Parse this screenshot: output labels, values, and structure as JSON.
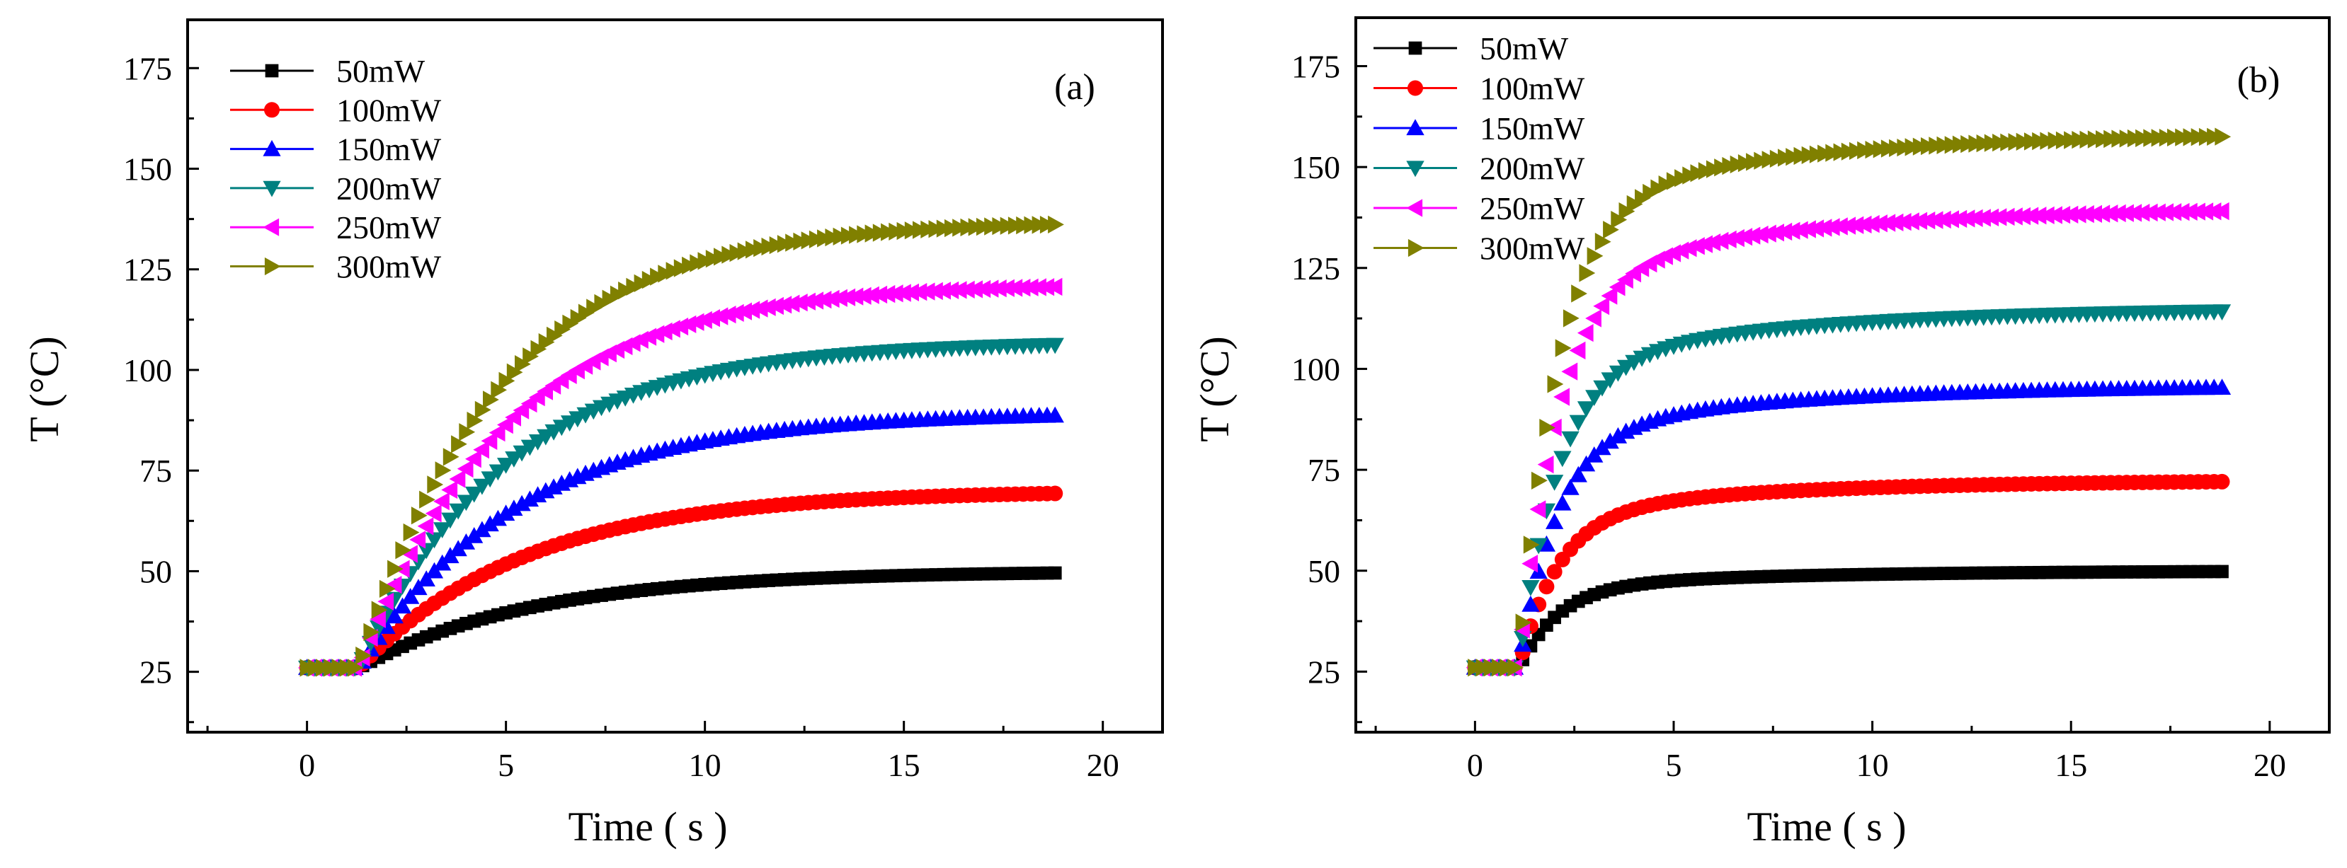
{
  "chart_data": [
    {
      "type": "scatter",
      "panel_label": "(a)",
      "xlabel": "Time ( s )",
      "ylabel": "T (°C)",
      "xlim": [
        -3,
        21.5
      ],
      "ylim": [
        10,
        187
      ],
      "xticks": [
        0,
        5,
        10,
        15,
        20
      ],
      "yticks": [
        25,
        50,
        75,
        100,
        125,
        150,
        175
      ],
      "xtick_labels": [
        "0",
        "5",
        "10",
        "15",
        "20"
      ],
      "ytick_labels": [
        "25",
        "50",
        "75",
        "100",
        "125",
        "150",
        "175"
      ],
      "legend_position": "top-left",
      "model": {
        "t_start": 0,
        "t_rise": 1.3,
        "t_end": 18.8,
        "dt": 0.2,
        "base_temperature": 26
      },
      "series": [
        {
          "name": "50mW",
          "color": "#000000",
          "marker": "square",
          "final_temperature": 50,
          "time_constant": 4.4
        },
        {
          "name": "100mW",
          "color": "#ff0000",
          "marker": "circle",
          "final_temperature": 70,
          "time_constant": 4.2
        },
        {
          "name": "150mW",
          "color": "#0000ff",
          "marker": "triangle-up",
          "final_temperature": 89.5,
          "time_constant": 4.0
        },
        {
          "name": "200mW",
          "color": "#008080",
          "marker": "triangle-down",
          "final_temperature": 107,
          "time_constant": 3.8
        },
        {
          "name": "250mW",
          "color": "#ff00ff",
          "marker": "triangle-left",
          "final_temperature": 121.5,
          "time_constant": 3.7
        },
        {
          "name": "300mW",
          "color": "#808000",
          "marker": "triangle-right",
          "final_temperature": 137,
          "time_constant": 3.6
        }
      ]
    },
    {
      "type": "scatter",
      "panel_label": "(b)",
      "xlabel": "Time ( s )",
      "ylabel": "T (°C)",
      "xlim": [
        -3,
        21.5
      ],
      "ylim": [
        10,
        187
      ],
      "xticks": [
        0,
        5,
        10,
        15,
        20
      ],
      "yticks": [
        25,
        50,
        75,
        100,
        125,
        150,
        175
      ],
      "xtick_labels": [
        "0",
        "5",
        "10",
        "15",
        "20"
      ],
      "ytick_labels": [
        "25",
        "50",
        "75",
        "100",
        "125",
        "150",
        "175"
      ],
      "legend_position": "top-left",
      "model": {
        "t_start": 0,
        "t_rise": 1.1,
        "t_end": 18.8,
        "dt": 0.2,
        "base_temperature": 26
      },
      "series": [
        {
          "name": "50mW",
          "color": "#000000",
          "marker": "square",
          "plateau_temperature": 46,
          "final_temperature": 50,
          "fast_time_constant": 1.0
        },
        {
          "name": "100mW",
          "color": "#ff0000",
          "marker": "circle",
          "plateau_temperature": 64,
          "final_temperature": 72.5,
          "fast_time_constant": 1.0
        },
        {
          "name": "150mW",
          "color": "#0000ff",
          "marker": "triangle-up",
          "plateau_temperature": 84,
          "final_temperature": 96,
          "fast_time_constant": 1.0
        },
        {
          "name": "200mW",
          "color": "#008080",
          "marker": "triangle-down",
          "plateau_temperature": 100,
          "final_temperature": 115,
          "fast_time_constant": 1.0
        },
        {
          "name": "250mW",
          "color": "#ff00ff",
          "marker": "triangle-left",
          "plateau_temperature": 122,
          "final_temperature": 140,
          "fast_time_constant": 1.0
        },
        {
          "name": "300mW",
          "color": "#808000",
          "marker": "triangle-right",
          "plateau_temperature": 140,
          "final_temperature": 158.5,
          "fast_time_constant": 1.0
        }
      ]
    }
  ]
}
